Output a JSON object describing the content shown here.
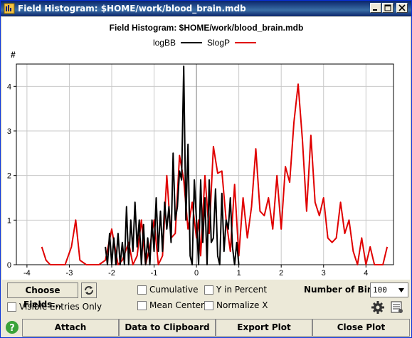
{
  "window": {
    "title": "Field Histogram: $HOME/work/blood_brain.mdb"
  },
  "chart_data": {
    "type": "line",
    "title": "Field Histogram: $HOME/work/blood_brain.mdb",
    "ylabel": "#",
    "xlim": [
      -4.25,
      4.65
    ],
    "ylim": [
      0,
      4.5
    ],
    "xticks": [
      -4,
      -3,
      -2,
      -1,
      0,
      1,
      2,
      3,
      4
    ],
    "yticks": [
      0,
      1,
      2,
      3,
      4
    ],
    "xtick_labels": [
      "-4",
      "-3",
      "-2",
      "-1",
      "0",
      "1",
      "2",
      "3",
      "4"
    ],
    "ytick_labels": [
      "0",
      "1",
      "2",
      "3",
      "4"
    ],
    "grid": true,
    "legend": "top-center",
    "series": [
      {
        "name": "logBB",
        "color": "#000000",
        "x": [
          -2.15,
          -2.1,
          -2.05,
          -2.0,
          -1.95,
          -1.9,
          -1.85,
          -1.8,
          -1.75,
          -1.7,
          -1.65,
          -1.6,
          -1.55,
          -1.5,
          -1.45,
          -1.4,
          -1.35,
          -1.3,
          -1.25,
          -1.2,
          -1.15,
          -1.1,
          -1.05,
          -1.0,
          -0.95,
          -0.9,
          -0.85,
          -0.8,
          -0.75,
          -0.7,
          -0.65,
          -0.6,
          -0.55,
          -0.5,
          -0.45,
          -0.4,
          -0.35,
          -0.3,
          -0.25,
          -0.2,
          -0.15,
          -0.1,
          -0.05,
          0.0,
          0.05,
          0.1,
          0.15,
          0.2,
          0.25,
          0.3,
          0.35,
          0.4,
          0.45,
          0.5,
          0.55,
          0.6,
          0.65,
          0.7,
          0.75,
          0.8,
          0.85,
          0.9,
          0.95,
          1.0
        ],
        "values": [
          0.4,
          0.0,
          0.7,
          0.0,
          0.6,
          0.0,
          0.7,
          0.0,
          0.5,
          0.0,
          1.3,
          0.0,
          1.0,
          0.3,
          1.4,
          0.4,
          1.0,
          0.0,
          0.9,
          0.0,
          0.6,
          0.0,
          1.0,
          0.3,
          1.5,
          0.3,
          1.2,
          0.3,
          1.4,
          0.8,
          1.3,
          0.5,
          2.5,
          1.0,
          1.3,
          2.1,
          1.9,
          4.45,
          1.0,
          2.7,
          0.2,
          0.0,
          1.9,
          1.0,
          0.0,
          1.9,
          0.5,
          1.5,
          0.0,
          1.9,
          0.5,
          0.6,
          1.7,
          0.2,
          0.0,
          1.6,
          0.3,
          1.0,
          0.8,
          1.5,
          0.4,
          0.0,
          0.5,
          0.0
        ]
      },
      {
        "name": "SlogP",
        "color": "#e00000",
        "x": [
          -3.65,
          -3.55,
          -3.45,
          -3.3,
          -3.1,
          -2.95,
          -2.85,
          -2.75,
          -2.6,
          -2.45,
          -2.3,
          -2.15,
          -2.0,
          -1.85,
          -1.75,
          -1.6,
          -1.5,
          -1.4,
          -1.3,
          -1.2,
          -1.1,
          -1.0,
          -0.9,
          -0.8,
          -0.7,
          -0.6,
          -0.5,
          -0.4,
          -0.3,
          -0.2,
          -0.1,
          0.0,
          0.05,
          0.1,
          0.2,
          0.3,
          0.4,
          0.5,
          0.6,
          0.7,
          0.8,
          0.9,
          1.0,
          1.1,
          1.2,
          1.3,
          1.4,
          1.5,
          1.6,
          1.7,
          1.8,
          1.9,
          2.0,
          2.1,
          2.2,
          2.3,
          2.4,
          2.5,
          2.6,
          2.7,
          2.8,
          2.9,
          3.0,
          3.1,
          3.2,
          3.3,
          3.4,
          3.5,
          3.6,
          3.7,
          3.8,
          3.9,
          4.0,
          4.1,
          4.2,
          4.3,
          4.4,
          4.5
        ],
        "values": [
          0.4,
          0.1,
          0.0,
          0.0,
          0.0,
          0.4,
          1.0,
          0.1,
          0.0,
          0.0,
          0.0,
          0.1,
          0.8,
          0.0,
          0.1,
          0.5,
          0.0,
          0.2,
          1.0,
          0.0,
          0.4,
          1.0,
          0.0,
          0.2,
          2.0,
          0.6,
          0.7,
          2.45,
          1.9,
          0.8,
          1.4,
          0.6,
          1.0,
          0.2,
          2.0,
          0.7,
          2.65,
          2.05,
          2.1,
          1.0,
          0.3,
          1.8,
          0.2,
          1.5,
          0.6,
          1.3,
          2.6,
          1.2,
          1.1,
          1.5,
          0.8,
          2.0,
          0.8,
          2.2,
          1.85,
          3.2,
          4.05,
          2.8,
          1.2,
          2.9,
          1.4,
          1.1,
          1.5,
          0.6,
          0.5,
          0.6,
          1.4,
          0.7,
          1.0,
          0.3,
          0.0,
          0.6,
          0.0,
          0.4,
          0.0,
          0.0,
          0.0,
          0.4
        ]
      }
    ]
  },
  "controls": {
    "choose_fields": "Choose Fields...",
    "cumulative": "Cumulative",
    "y_in_percent": "Y in Percent",
    "mean_center": "Mean Center",
    "normalize_x": "Normalize X",
    "visible_entries_only": "Visible Entries Only",
    "num_bins_label": "Number of Bins:",
    "num_bins_value": "100"
  },
  "buttons": {
    "attach": "Attach",
    "data_to_clipboard": "Data to Clipboard",
    "export_plot": "Export Plot",
    "close_plot": "Close Plot"
  },
  "colors": {
    "title_bar": "#0a246a",
    "series_logbb": "#000000",
    "series_slogp": "#e00000"
  }
}
